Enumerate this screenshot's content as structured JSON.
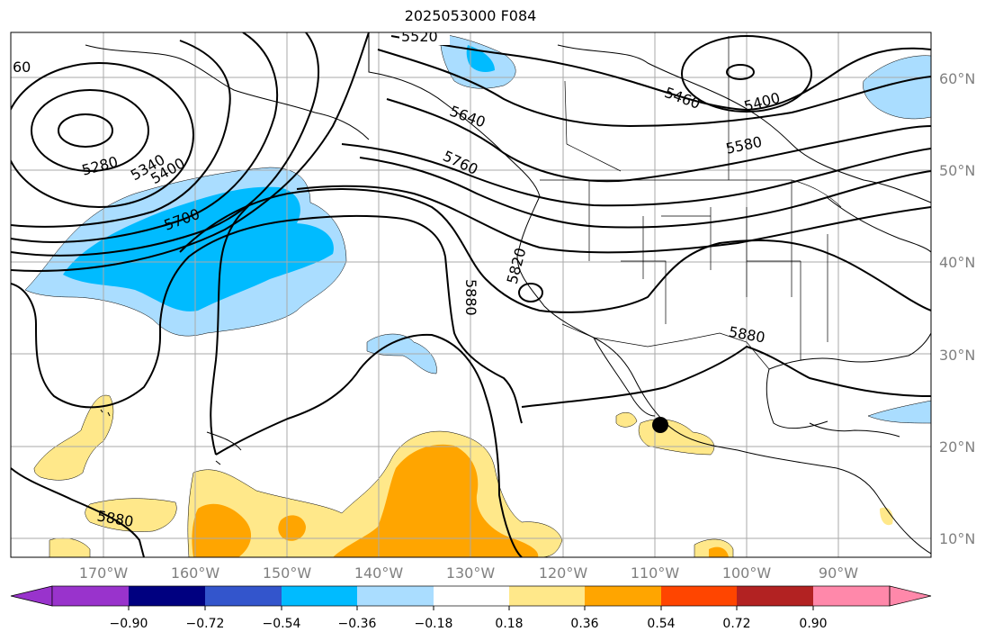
{
  "title": "2025053000 F084",
  "map": {
    "lon_labels": [
      "170°W",
      "160°W",
      "150°W",
      "140°W",
      "130°W",
      "120°W",
      "110°W",
      "100°W",
      "90°W"
    ],
    "lat_labels": [
      "60°N",
      "50°N",
      "40°N",
      "30°N",
      "20°N",
      "10°N"
    ],
    "contour_labels": [
      "5520",
      "60",
      "5460",
      "5400",
      "5640",
      "5580",
      "5280",
      "5340",
      "5400",
      "5760",
      "5700",
      "5820",
      "5880",
      "5880",
      "5880"
    ],
    "marker": "storm-center-dot"
  },
  "colorbar": {
    "ticks": [
      "−0.90",
      "−0.72",
      "−0.54",
      "−0.36",
      "−0.18",
      "0.18",
      "0.36",
      "0.54",
      "0.72",
      "0.90"
    ],
    "colors": [
      "#9933cc",
      "#000080",
      "#3355cc",
      "#00bbff",
      "#aaddff",
      "#ffffff",
      "#ffe88a",
      "#ffa500",
      "#ff4500",
      "#b22222",
      "#ff88aa"
    ]
  }
}
